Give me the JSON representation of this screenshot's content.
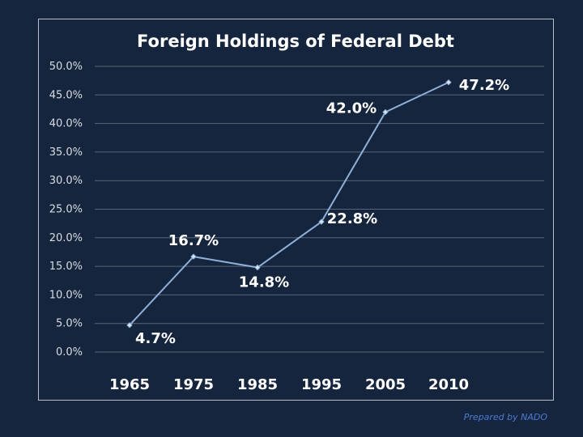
{
  "chart_data": {
    "type": "line",
    "title": "Foreign Holdings of Federal Debt",
    "categories": [
      "1965",
      "1975",
      "1985",
      "1995",
      "2005",
      "2010"
    ],
    "values": [
      4.7,
      16.7,
      14.8,
      22.8,
      42.0,
      47.2
    ],
    "data_labels": [
      "4.7%",
      "16.7%",
      "14.8%",
      "22.8%",
      "42.0%",
      "47.2%"
    ],
    "y_ticks": [
      "0.0%",
      "5.0%",
      "10.0%",
      "15.0%",
      "20.0%",
      "25.0%",
      "30.0%",
      "35.0%",
      "40.0%",
      "45.0%",
      "50.0%"
    ],
    "ylim": [
      0,
      50
    ],
    "grid": true,
    "xlabel": "",
    "ylabel": "",
    "line_color": "#8fb0d8",
    "grid_color": "#5a6677",
    "background_color": "#15253d"
  },
  "footer": {
    "credit": "Prepared by NADO"
  }
}
